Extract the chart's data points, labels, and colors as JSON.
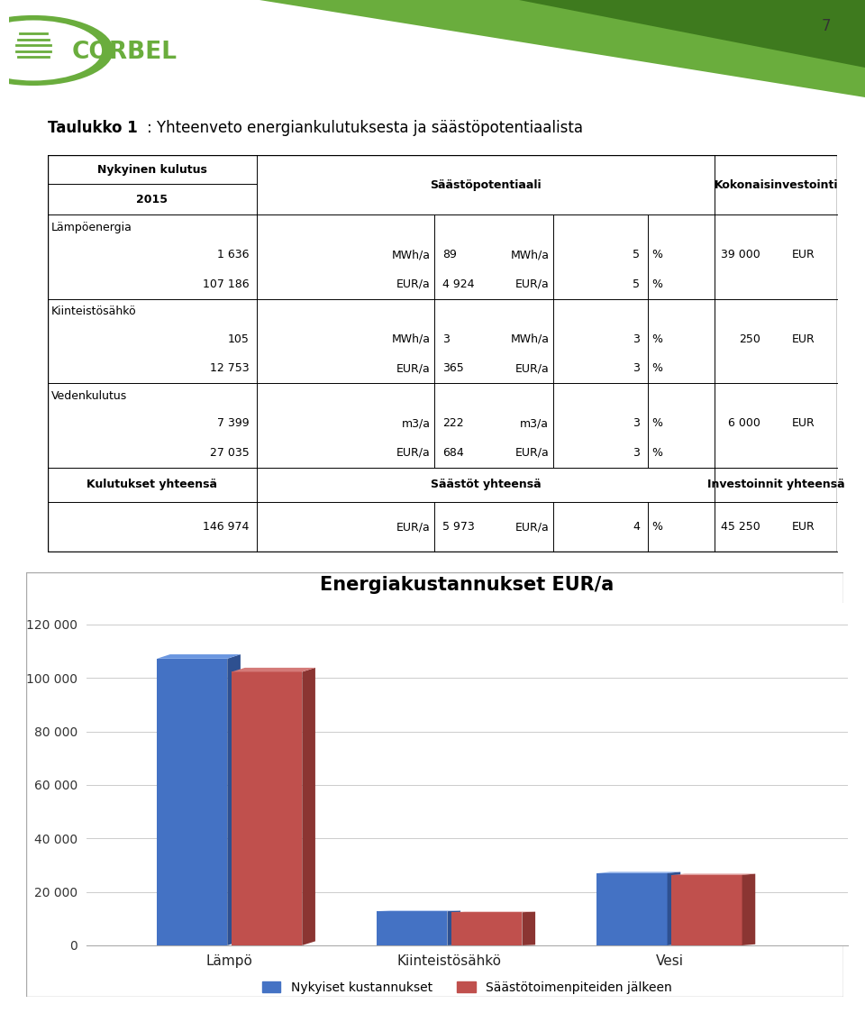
{
  "page_number": "7",
  "title_bold": "Taulukko 1",
  "title_rest": ": Yhteenveto energiankulutuksesta ja säästöpotentiaalista",
  "chart_title": "Energiakustannukset EUR/a",
  "categories": [
    "Lämpö",
    "Kiinteistösähkö",
    "Vesi"
  ],
  "series1_label": "Nykyiset kustannukset",
  "series2_label": "Säästötoimenpiteiden jälkeen",
  "series1_values": [
    107186,
    12753,
    27035
  ],
  "series2_values": [
    102262,
    12388,
    26351
  ],
  "bar_color1": "#4472C4",
  "bar_color2": "#C0504D",
  "bar_color1_dark": "#2E5090",
  "bar_color2_dark": "#8B3532",
  "bar_color1_top": "#6A96E0",
  "bar_color2_top": "#D47A78",
  "yticks": [
    0,
    20000,
    40000,
    60000,
    80000,
    100000,
    120000
  ],
  "ytick_labels": [
    "0",
    "20 000",
    "40 000",
    "60 000",
    "80 000",
    "100 000",
    "120 000"
  ],
  "background_color": "#FFFFFF",
  "green_light": "#6AAD3D",
  "green_dark": "#3E7A1E",
  "table_sections": [
    {
      "name": "Lämpöenergia",
      "row1": [
        "1 636",
        "MWh/a",
        "89",
        "MWh/a",
        "5",
        "%",
        "39 000",
        "EUR"
      ],
      "row2": [
        "107 186",
        "EUR/a",
        "4 924",
        "EUR/a",
        "5",
        "%",
        "",
        ""
      ]
    },
    {
      "name": "Kiinteistösähkö",
      "row1": [
        "105",
        "MWh/a",
        "3",
        "MWh/a",
        "3",
        "%",
        "250",
        "EUR"
      ],
      "row2": [
        "12 753",
        "EUR/a",
        "365",
        "EUR/a",
        "3",
        "%",
        "",
        ""
      ]
    },
    {
      "name": "Vedenkulutus",
      "row1": [
        "7 399",
        "m3/a",
        "222",
        "m3/a",
        "3",
        "%",
        "6 000",
        "EUR"
      ],
      "row2": [
        "27 035",
        "EUR/a",
        "684",
        "EUR/a",
        "3",
        "%",
        "",
        ""
      ]
    }
  ],
  "footer_labels": [
    "Kulutukset yhteensä",
    "Säästöt yhteensä",
    "Investoinnit yhteensä"
  ],
  "total_row": [
    "146 974",
    "EUR/a",
    "5 973",
    "EUR/a",
    "4",
    "%",
    "45 250",
    "EUR"
  ]
}
